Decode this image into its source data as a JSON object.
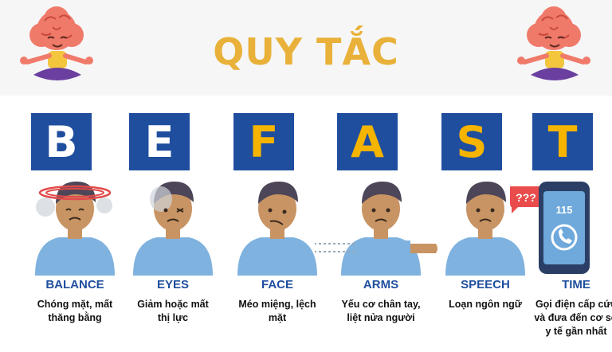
{
  "title": "QUY TẮC",
  "colors": {
    "title": "#e9b13a",
    "box": "#1f4e9e",
    "letter_white": "#ffffff",
    "letter_yellow": "#f5b400",
    "label": "#1f4e9e",
    "shirt": "#7fb2df",
    "skin": "#c89463",
    "hair": "#4d4658",
    "brain": "#f07a6a",
    "phone": "#2b3f66",
    "phone_screen": "#6fa8da"
  },
  "steps": [
    {
      "letter": "B",
      "letter_color": "white",
      "label": "BALANCE",
      "desc": [
        "Chóng mặt, mất",
        "thăng bằng"
      ],
      "icon": "dizzy-person-icon"
    },
    {
      "letter": "E",
      "letter_color": "white",
      "label": "EYES",
      "desc": [
        "Giảm hoặc mất",
        "thị lực"
      ],
      "icon": "blurred-vision-person-icon"
    },
    {
      "letter": "F",
      "letter_color": "yellow",
      "label": "FACE",
      "desc": [
        "Méo miệng, lệch",
        "mặt"
      ],
      "icon": "drooping-face-person-icon"
    },
    {
      "letter": "A",
      "letter_color": "yellow",
      "label": "ARMS",
      "desc": [
        "Yếu cơ chân tay,",
        "liệt nửa người"
      ],
      "icon": "weak-arm-person-icon"
    },
    {
      "letter": "S",
      "letter_color": "yellow",
      "label": "SPEECH",
      "desc": [
        "Loạn ngôn ngữ"
      ],
      "icon": "confused-speech-person-icon"
    },
    {
      "letter": "T",
      "letter_color": "yellow",
      "label": "TIME",
      "desc": [
        "Gọi điện cấp cứu",
        "và đưa đến cơ sở",
        "y tế gần nhất"
      ],
      "icon": "phone-call-icon"
    }
  ],
  "speech_bubble": "???",
  "phone_number": "115"
}
